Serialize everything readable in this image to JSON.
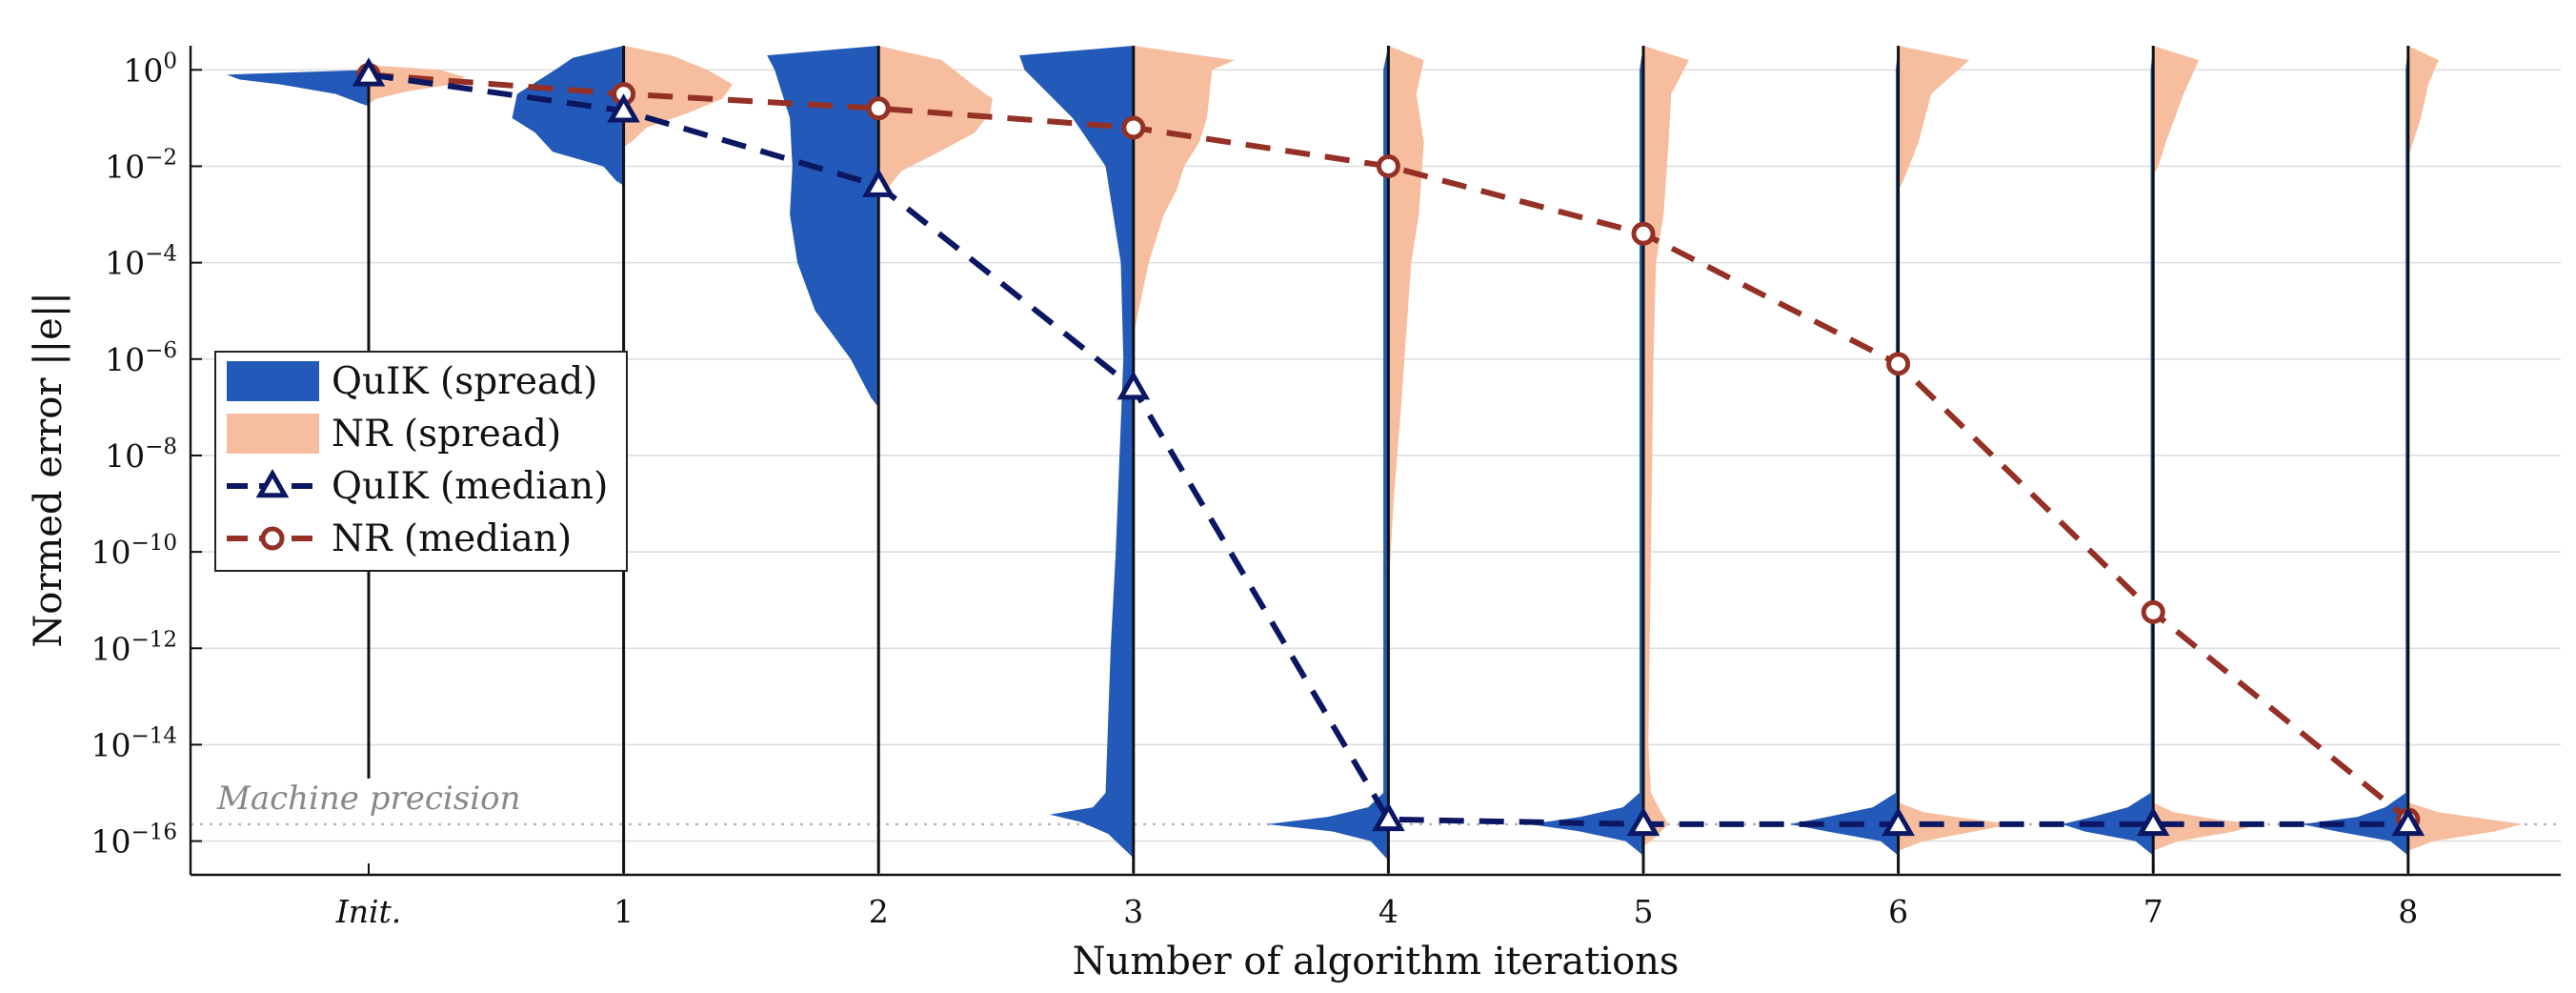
{
  "chart_data": {
    "type": "violin-line",
    "xlabel": "Number of algorithm iterations",
    "ylabel": "Normed error ||e||",
    "y_scale": "log",
    "ylim_exp": [
      -16.7,
      0.5
    ],
    "x_categories": [
      "Init.",
      "1",
      "2",
      "3",
      "4",
      "5",
      "6",
      "7",
      "8"
    ],
    "y_tick_exponents": [
      0,
      -2,
      -4,
      -6,
      -8,
      -10,
      -12,
      -14,
      -16
    ],
    "y_tick_base": "10",
    "grid": "horizontal",
    "legend_position": "left",
    "colors": {
      "quik": "#2359b8",
      "nr": "#f6bd9e",
      "quik_median": "#0b1763",
      "nr_median": "#943025",
      "grid": "#dedede",
      "precision_line": "#b5b5b5"
    },
    "annotation": {
      "text": "Machine precision",
      "y_exp": -15.65
    },
    "series": [
      {
        "name": "QuIK (median)",
        "log10_values": [
          -0.1,
          -0.85,
          -2.4,
          -6.6,
          -15.55,
          -15.65,
          -15.65,
          -15.65,
          -15.65
        ]
      },
      {
        "name": "NR (median)",
        "log10_values": [
          -0.1,
          -0.5,
          -0.8,
          -1.2,
          -2.0,
          -3.4,
          -6.1,
          -11.25,
          -15.55
        ]
      }
    ],
    "spread": [
      {
        "name": "QuIK (spread)",
        "side": "left",
        "shapes": [
          [
            [
              0.0,
              0
            ],
            [
              -0.1,
              0.56
            ],
            [
              -0.2,
              0.51
            ],
            [
              -0.3,
              0.35
            ],
            [
              -0.5,
              0.13
            ],
            [
              -0.7,
              0.03
            ],
            [
              -0.75,
              0
            ]
          ],
          [
            [
              0.5,
              0
            ],
            [
              0.25,
              0.2
            ],
            [
              0.0,
              0.27
            ],
            [
              -0.5,
              0.42
            ],
            [
              -1.0,
              0.44
            ],
            [
              -1.3,
              0.35
            ],
            [
              -1.7,
              0.28
            ],
            [
              -2.0,
              0.08
            ],
            [
              -2.3,
              0.03
            ],
            [
              -2.4,
              0
            ]
          ],
          [
            [
              0.5,
              0
            ],
            [
              0.3,
              0.44
            ],
            [
              0.0,
              0.41
            ],
            [
              -1.0,
              0.35
            ],
            [
              -2.0,
              0.34
            ],
            [
              -3.0,
              0.35
            ],
            [
              -4.0,
              0.32
            ],
            [
              -5.0,
              0.25
            ],
            [
              -6.0,
              0.11
            ],
            [
              -6.8,
              0.03
            ],
            [
              -7.0,
              0
            ]
          ],
          [
            [
              0.5,
              0
            ],
            [
              0.3,
              0.45
            ],
            [
              0.0,
              0.43
            ],
            [
              -1.0,
              0.24
            ],
            [
              -2.0,
              0.11
            ],
            [
              -4.0,
              0.05
            ],
            [
              -6.0,
              0.04
            ],
            [
              -10.0,
              0.07
            ],
            [
              -12.0,
              0.09
            ],
            [
              -15.0,
              0.11
            ],
            [
              -15.3,
              0.16
            ],
            [
              -15.45,
              0.33
            ],
            [
              -15.6,
              0.21
            ],
            [
              -15.85,
              0.1
            ],
            [
              -16.0,
              0.07
            ],
            [
              -16.35,
              0
            ]
          ],
          [
            [
              0.5,
              0
            ],
            [
              0.0,
              0.02
            ],
            [
              -15.0,
              0.02
            ],
            [
              -15.3,
              0.08
            ],
            [
              -15.5,
              0.24
            ],
            [
              -15.65,
              0.48
            ],
            [
              -15.8,
              0.22
            ],
            [
              -16.0,
              0.07
            ],
            [
              -16.4,
              0
            ]
          ],
          [
            [
              0.5,
              0
            ],
            [
              0.0,
              0.015
            ],
            [
              -15.0,
              0.015
            ],
            [
              -15.3,
              0.08
            ],
            [
              -15.5,
              0.25
            ],
            [
              -15.65,
              0.45
            ],
            [
              -15.8,
              0.25
            ],
            [
              -16.0,
              0.07
            ],
            [
              -16.3,
              0
            ]
          ],
          [
            [
              0.5,
              0
            ],
            [
              0.0,
              0.01
            ],
            [
              -15.0,
              0.01
            ],
            [
              -15.3,
              0.1
            ],
            [
              -15.5,
              0.28
            ],
            [
              -15.65,
              0.43
            ],
            [
              -15.8,
              0.28
            ],
            [
              -16.0,
              0.07
            ],
            [
              -16.3,
              0
            ]
          ],
          [
            [
              0.5,
              0
            ],
            [
              0.0,
              0.01
            ],
            [
              -15.0,
              0.01
            ],
            [
              -15.3,
              0.1
            ],
            [
              -15.5,
              0.24
            ],
            [
              -15.65,
              0.36
            ],
            [
              -15.8,
              0.27
            ],
            [
              -16.0,
              0.07
            ],
            [
              -16.3,
              0
            ]
          ],
          [
            [
              0.5,
              0
            ],
            [
              0.0,
              0.01
            ],
            [
              -15.0,
              0.01
            ],
            [
              -15.3,
              0.09
            ],
            [
              -15.5,
              0.2
            ],
            [
              -15.65,
              0.42
            ],
            [
              -15.8,
              0.28
            ],
            [
              -16.0,
              0.07
            ],
            [
              -16.3,
              0
            ]
          ]
        ]
      },
      {
        "name": "NR (spread)",
        "side": "right",
        "shapes": [
          [
            [
              0.1,
              0
            ],
            [
              0.0,
              0.28
            ],
            [
              -0.15,
              0.38
            ],
            [
              -0.3,
              0.33
            ],
            [
              -0.45,
              0.15
            ],
            [
              -0.6,
              0.03
            ],
            [
              -0.7,
              0
            ]
          ],
          [
            [
              0.5,
              0
            ],
            [
              0.3,
              0.19
            ],
            [
              0.0,
              0.33
            ],
            [
              -0.3,
              0.43
            ],
            [
              -0.6,
              0.39
            ],
            [
              -0.9,
              0.25
            ],
            [
              -1.2,
              0.09
            ],
            [
              -1.5,
              0.03
            ],
            [
              -1.6,
              0
            ]
          ],
          [
            [
              0.5,
              0
            ],
            [
              0.2,
              0.25
            ],
            [
              -0.3,
              0.37
            ],
            [
              -0.6,
              0.45
            ],
            [
              -0.9,
              0.44
            ],
            [
              -1.3,
              0.38
            ],
            [
              -1.7,
              0.24
            ],
            [
              -2.1,
              0.09
            ],
            [
              -2.5,
              0.03
            ],
            [
              -2.7,
              0
            ]
          ],
          [
            [
              0.5,
              0
            ],
            [
              0.2,
              0.4
            ],
            [
              0.0,
              0.31
            ],
            [
              -0.5,
              0.3
            ],
            [
              -1.0,
              0.29
            ],
            [
              -1.5,
              0.26
            ],
            [
              -2.0,
              0.2
            ],
            [
              -2.5,
              0.17
            ],
            [
              -3.0,
              0.12
            ],
            [
              -4.0,
              0.06
            ],
            [
              -5.0,
              0.02
            ],
            [
              -5.5,
              0
            ]
          ],
          [
            [
              0.5,
              0
            ],
            [
              0.2,
              0.14
            ],
            [
              -0.5,
              0.11
            ],
            [
              -1.5,
              0.14
            ],
            [
              -3.0,
              0.12
            ],
            [
              -4.0,
              0.09
            ],
            [
              -5.5,
              0.07
            ],
            [
              -7.0,
              0.05
            ],
            [
              -9.0,
              0.02
            ],
            [
              -10.5,
              0.004
            ],
            [
              -11.0,
              0
            ]
          ],
          [
            [
              0.5,
              0
            ],
            [
              0.2,
              0.18
            ],
            [
              -0.5,
              0.11
            ],
            [
              -1.5,
              0.1
            ],
            [
              -3.0,
              0.08
            ],
            [
              -4.0,
              0.05
            ],
            [
              -6.0,
              0.04
            ],
            [
              -10.0,
              0.03
            ],
            [
              -14.0,
              0.02
            ],
            [
              -15.0,
              0.03
            ],
            [
              -15.4,
              0.07
            ],
            [
              -15.65,
              0.1
            ],
            [
              -16.0,
              0.03
            ],
            [
              -16.1,
              0
            ]
          ],
          [
            [
              0.5,
              0
            ],
            [
              0.2,
              0.28
            ],
            [
              -0.5,
              0.13
            ],
            [
              -1.5,
              0.08
            ],
            [
              -2.3,
              0.02
            ],
            [
              -2.5,
              0
            ],
            [
              -15.2,
              0
            ],
            [
              -15.4,
              0.1
            ],
            [
              -15.55,
              0.3
            ],
            [
              -15.65,
              0.45
            ],
            [
              -15.8,
              0.3
            ],
            [
              -16.0,
              0.1
            ],
            [
              -16.2,
              0
            ]
          ],
          [
            [
              0.5,
              0
            ],
            [
              0.2,
              0.18
            ],
            [
              -0.5,
              0.12
            ],
            [
              -1.5,
              0.05
            ],
            [
              -2.0,
              0.02
            ],
            [
              -2.2,
              0
            ],
            [
              -15.2,
              0
            ],
            [
              -15.4,
              0.08
            ],
            [
              -15.55,
              0.25
            ],
            [
              -15.65,
              0.42
            ],
            [
              -15.8,
              0.32
            ],
            [
              -16.0,
              0.1
            ],
            [
              -16.2,
              0
            ]
          ],
          [
            [
              0.5,
              0
            ],
            [
              0.2,
              0.12
            ],
            [
              -0.3,
              0.08
            ],
            [
              -1.0,
              0.05
            ],
            [
              -1.5,
              0.02
            ],
            [
              -1.8,
              0
            ],
            [
              -15.2,
              0
            ],
            [
              -15.4,
              0.12
            ],
            [
              -15.55,
              0.32
            ],
            [
              -15.65,
              0.45
            ],
            [
              -15.8,
              0.34
            ],
            [
              -16.0,
              0.1
            ],
            [
              -16.2,
              0
            ]
          ]
        ]
      }
    ]
  }
}
